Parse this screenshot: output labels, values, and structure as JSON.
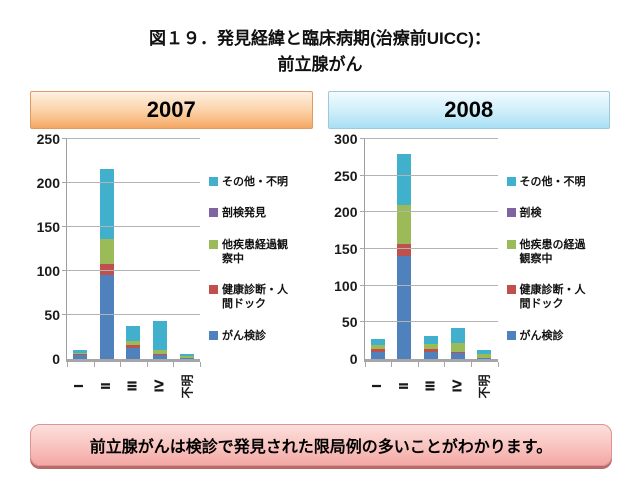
{
  "title": {
    "line1": "図１９．発見経緯と臨床病期(治療前UICC)：",
    "line2": "前立腺がん"
  },
  "footer": {
    "text": "前立腺がんは検診で発見された限局例の多いことがわかります。"
  },
  "colors": {
    "screening_blue": "#4f81bd",
    "checkup_red": "#c0504d",
    "other_disease_green": "#9bbb59",
    "autopsy_purple": "#8064a2",
    "other_unknown_teal": "#41b0cd",
    "gridline_gray": "#b3b3b3",
    "header_2007_orange": "#f5a763",
    "header_2008_blue": "#a8dff4",
    "footer_pink": "#f8c0bc"
  },
  "chart_data": [
    {
      "type": "bar",
      "stacked": true,
      "year": "2007",
      "header_style": "hdr-orange",
      "title": "2007",
      "xlabel": "",
      "ylabel": "",
      "ylim": [
        0,
        250
      ],
      "ytick_step": 50,
      "grid": true,
      "legend_position": "right",
      "categories": [
        "Ⅰ",
        "Ⅱ",
        "Ⅲ",
        "Ⅳ",
        "不明"
      ],
      "series": [
        {
          "name": "がん検診",
          "color": "#4f81bd",
          "values": [
            4,
            96,
            13,
            4,
            1
          ]
        },
        {
          "name": "健康診断・人間ドック",
          "color": "#c0504d",
          "values": [
            2,
            12,
            3,
            2,
            0
          ]
        },
        {
          "name": "他疾患経過観察中",
          "color": "#9bbb59",
          "values": [
            1,
            28,
            5,
            4,
            2
          ]
        },
        {
          "name": "剖検発見",
          "color": "#8064a2",
          "values": [
            0,
            0,
            0,
            0,
            0
          ]
        },
        {
          "name": "その他・不明",
          "color": "#41b0cd",
          "values": [
            3,
            80,
            17,
            33,
            3
          ]
        }
      ]
    },
    {
      "type": "bar",
      "stacked": true,
      "year": "2008",
      "header_style": "hdr-blue",
      "title": "2008",
      "xlabel": "",
      "ylabel": "",
      "ylim": [
        0,
        300
      ],
      "ytick_step": 50,
      "grid": true,
      "legend_position": "right",
      "categories": [
        "Ⅰ",
        "Ⅱ",
        "Ⅲ",
        "Ⅳ",
        "不明"
      ],
      "series": [
        {
          "name": "がん検診",
          "color": "#4f81bd",
          "values": [
            10,
            140,
            10,
            8,
            1
          ]
        },
        {
          "name": "健康診断・人間ドック",
          "color": "#c0504d",
          "values": [
            4,
            17,
            3,
            2,
            0
          ]
        },
        {
          "name": "他疾患の経過観察中",
          "color": "#9bbb59",
          "values": [
            5,
            53,
            8,
            12,
            6
          ]
        },
        {
          "name": "剖検",
          "color": "#8064a2",
          "values": [
            0,
            0,
            0,
            0,
            0
          ]
        },
        {
          "name": "その他・不明",
          "color": "#41b0cd",
          "values": [
            8,
            70,
            11,
            21,
            5
          ]
        }
      ]
    }
  ]
}
